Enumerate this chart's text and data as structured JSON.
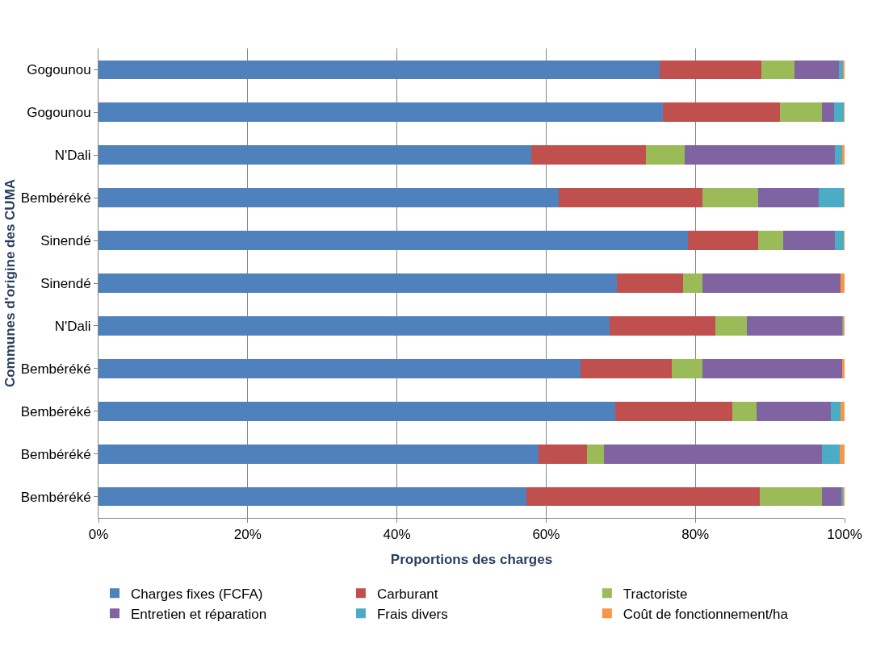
{
  "chart_data": {
    "type": "bar",
    "orientation": "horizontal",
    "stacked": true,
    "xlabel": "Proportions des charges",
    "ylabel": "Communes d'origine des CUMA",
    "categories": [
      "Gogounou",
      "Gogounou",
      "N'Dali",
      "Bembéréké",
      "Sinendé",
      "Sinendé",
      "N'Dali",
      "Bembéréké",
      "Bembéréké",
      "Bembéréké",
      "Bembéréké"
    ],
    "series": [
      {
        "name": "Charges fixes (FCFA)",
        "color": "#4f81bd",
        "values": [
          75.2,
          75.7,
          58.0,
          61.7,
          79.0,
          69.5,
          68.5,
          64.6,
          69.3,
          59.0,
          57.4
        ]
      },
      {
        "name": "Carburant",
        "color": "#c0504d",
        "values": [
          13.6,
          15.6,
          15.4,
          19.3,
          9.4,
          8.9,
          14.2,
          12.2,
          15.7,
          6.5,
          31.2
        ]
      },
      {
        "name": "Tractoriste",
        "color": "#9bbb59",
        "values": [
          4.5,
          5.7,
          5.2,
          7.4,
          3.4,
          2.6,
          4.2,
          4.2,
          3.2,
          2.3,
          8.4
        ]
      },
      {
        "name": "Entretien et réparation",
        "color": "#8064a2",
        "values": [
          5.9,
          1.6,
          20.1,
          8.1,
          6.9,
          18.5,
          12.8,
          18.7,
          10.0,
          29.2,
          2.6
        ]
      },
      {
        "name": "Frais divers",
        "color": "#4bacc6",
        "values": [
          0.6,
          1.3,
          1.0,
          3.4,
          1.2,
          0.0,
          0.1,
          0.0,
          1.3,
          2.4,
          0.2
        ]
      },
      {
        "name": "Coût de fonctionnement/ha",
        "color": "#f79646",
        "values": [
          0.2,
          0.1,
          0.3,
          0.1,
          0.1,
          0.5,
          0.2,
          0.3,
          0.5,
          0.6,
          0.2
        ]
      }
    ],
    "xlim": [
      0,
      100
    ],
    "xticks": [
      {
        "value": 0,
        "label": "0%"
      },
      {
        "value": 20,
        "label": "20%"
      },
      {
        "value": 40,
        "label": "40%"
      },
      {
        "value": 60,
        "label": "60%"
      },
      {
        "value": 80,
        "label": "80%"
      },
      {
        "value": 100,
        "label": "100%"
      }
    ],
    "grid": "x",
    "legend": "bottom"
  }
}
